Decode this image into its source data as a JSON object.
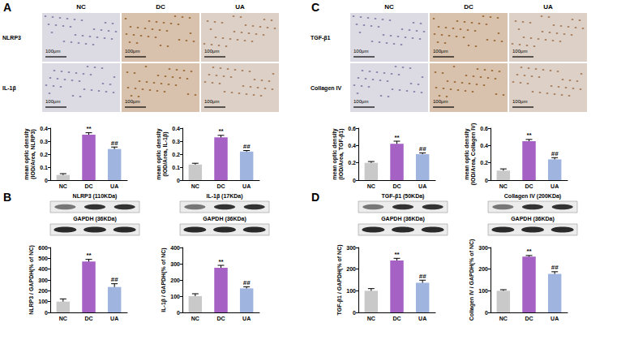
{
  "chart_data": [
    {
      "type": "bar",
      "y_label": [
        "mean optic density",
        "(IOD/Area, NLRP3)"
      ],
      "categories": [
        "NC",
        "DC",
        "UA"
      ],
      "values": [
        0.04,
        0.35,
        0.24
      ],
      "errors": [
        0.01,
        0.015,
        0.015
      ],
      "colors": [
        "#c9c9c9",
        "#a561c4",
        "#9fb5df"
      ],
      "ylim": [
        0,
        0.4
      ],
      "yticks": [
        0,
        0.1,
        0.2,
        0.3,
        0.4
      ],
      "grid": false,
      "annotations": [
        {
          "category": "DC",
          "text": "**"
        },
        {
          "category": "UA",
          "text": "##"
        }
      ]
    },
    {
      "type": "bar",
      "y_label": [
        "mean optic density",
        "(IOD/Area, IL-1β)"
      ],
      "categories": [
        "NC",
        "DC",
        "UA"
      ],
      "values": [
        0.12,
        0.33,
        0.22
      ],
      "errors": [
        0.01,
        0.015,
        0.008
      ],
      "colors": [
        "#c9c9c9",
        "#a561c4",
        "#9fb5df"
      ],
      "ylim": [
        0,
        0.4
      ],
      "yticks": [
        0,
        0.1,
        0.2,
        0.3,
        0.4
      ],
      "grid": false,
      "annotations": [
        {
          "category": "DC",
          "text": "**"
        },
        {
          "category": "UA",
          "text": "##"
        }
      ]
    },
    {
      "type": "bar",
      "y_label": [
        "NLRP3 / GAPDH(% of NC)"
      ],
      "categories": [
        "NC",
        "DC",
        "UA"
      ],
      "values": [
        100,
        470,
        235
      ],
      "errors": [
        25,
        20,
        30
      ],
      "colors": [
        "#c9c9c9",
        "#a561c4",
        "#9fb5df"
      ],
      "ylim": [
        0,
        600
      ],
      "yticks": [
        0,
        100,
        200,
        300,
        400,
        500,
        600
      ],
      "grid": false,
      "annotations": [
        {
          "category": "DC",
          "text": "**"
        },
        {
          "category": "UA",
          "text": "##"
        }
      ]
    },
    {
      "type": "bar",
      "y_label": [
        "IL-1β / GAPDH(% of NC)"
      ],
      "categories": [
        "NC",
        "DC",
        "UA"
      ],
      "values": [
        100,
        275,
        148
      ],
      "errors": [
        15,
        15,
        10
      ],
      "colors": [
        "#c9c9c9",
        "#a561c4",
        "#9fb5df"
      ],
      "ylim": [
        0,
        400
      ],
      "yticks": [
        0,
        100,
        200,
        300,
        400
      ],
      "grid": false,
      "annotations": [
        {
          "category": "DC",
          "text": "**"
        },
        {
          "category": "UA",
          "text": "##"
        }
      ]
    },
    {
      "type": "bar",
      "y_label": [
        "mean optic density",
        "(IOD/Area, TGF-β1)"
      ],
      "categories": [
        "NC",
        "DC",
        "UA"
      ],
      "values": [
        0.2,
        0.42,
        0.3
      ],
      "errors": [
        0.015,
        0.03,
        0.015
      ],
      "colors": [
        "#c9c9c9",
        "#a561c4",
        "#9fb5df"
      ],
      "ylim": [
        0,
        0.6
      ],
      "yticks": [
        0,
        0.2,
        0.4,
        0.6
      ],
      "grid": false,
      "annotations": [
        {
          "category": "DC",
          "text": "**"
        },
        {
          "category": "UA",
          "text": "##"
        }
      ]
    },
    {
      "type": "bar",
      "y_label": [
        "mean optic density",
        "(IOD/Area, Collagen IV)"
      ],
      "categories": [
        "NC",
        "DC",
        "UA"
      ],
      "values": [
        0.11,
        0.45,
        0.24
      ],
      "errors": [
        0.02,
        0.02,
        0.02
      ],
      "colors": [
        "#c9c9c9",
        "#a561c4",
        "#9fb5df"
      ],
      "ylim": [
        0,
        0.6
      ],
      "yticks": [
        0,
        0.2,
        0.4,
        0.6
      ],
      "grid": false,
      "annotations": [
        {
          "category": "DC",
          "text": "**"
        },
        {
          "category": "UA",
          "text": "##"
        }
      ]
    },
    {
      "type": "bar",
      "y_label": [
        "TGF-β1 / GAPDH(% of NC)"
      ],
      "categories": [
        "NC",
        "DC",
        "UA"
      ],
      "values": [
        100,
        240,
        137
      ],
      "errors": [
        10,
        10,
        12
      ],
      "colors": [
        "#c9c9c9",
        "#a561c4",
        "#9fb5df"
      ],
      "ylim": [
        0,
        300
      ],
      "yticks": [
        0,
        100,
        200,
        300
      ],
      "grid": false,
      "annotations": [
        {
          "category": "DC",
          "text": "**"
        },
        {
          "category": "UA",
          "text": "##"
        }
      ]
    },
    {
      "type": "bar",
      "y_label": [
        "Collagen IV / GAPDH(% of NC)"
      ],
      "categories": [
        "NC",
        "DC",
        "UA"
      ],
      "values": [
        100,
        258,
        178
      ],
      "errors": [
        5,
        5,
        10
      ],
      "colors": [
        "#c9c9c9",
        "#a561c4",
        "#9fb5df"
      ],
      "ylim": [
        0,
        300
      ],
      "yticks": [
        0,
        100,
        200,
        300
      ],
      "grid": false,
      "annotations": [
        {
          "category": "DC",
          "text": "**"
        },
        {
          "category": "UA",
          "text": "##"
        }
      ]
    }
  ],
  "panels": [
    {
      "letter": "A",
      "columns": [
        "NC",
        "DC",
        "UA"
      ],
      "rows": [
        "NLRP3",
        "IL-1β"
      ],
      "scale_bar": "100μm"
    },
    {
      "letter": "B",
      "blots": [
        {
          "target": "NLRP3 (110KDa)",
          "control": "GAPDH (36KDa)"
        },
        {
          "target": "IL-1β (17KDa)",
          "control": "GAPDH (36KDa)"
        }
      ]
    },
    {
      "letter": "C",
      "columns": [
        "NC",
        "DC",
        "UA"
      ],
      "rows": [
        "TGF-β1",
        "Collagen IV"
      ],
      "scale_bar": "100μm"
    },
    {
      "letter": "D",
      "blots": [
        {
          "target": "TGF-β1 (50KDa)",
          "control": "GAPDH (36KDa)"
        },
        {
          "target": "Collagen IV (200KDa)",
          "control": "GAPDH (36KDa)"
        }
      ]
    }
  ]
}
